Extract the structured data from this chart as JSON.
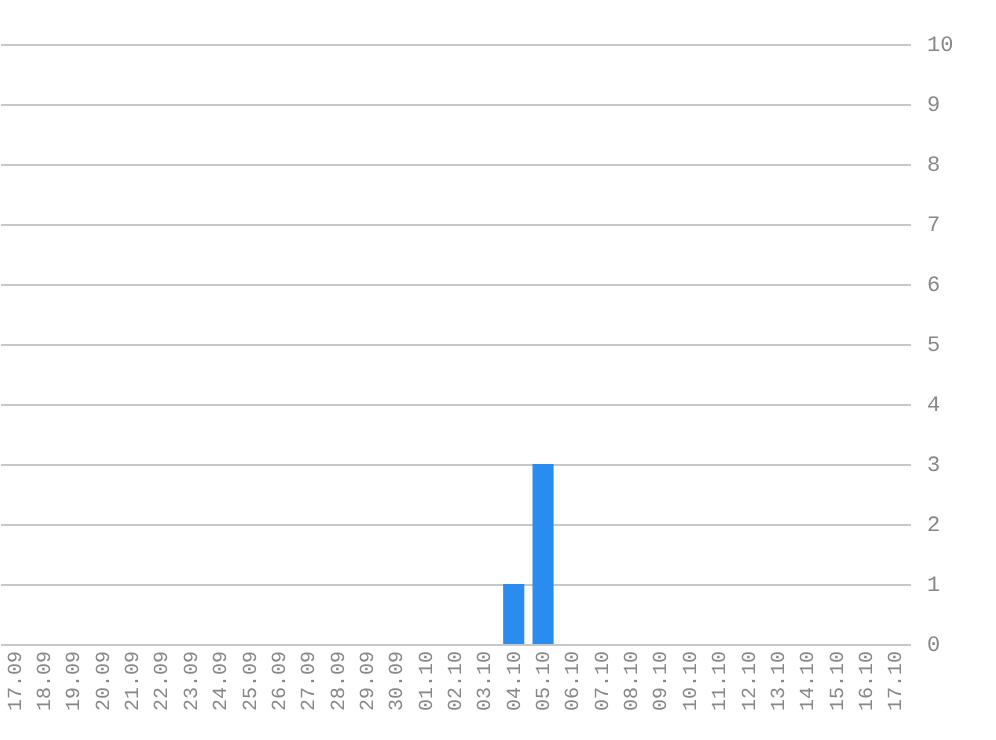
{
  "chart_data": {
    "type": "bar",
    "categories": [
      "17.09",
      "18.09",
      "19.09",
      "20.09",
      "21.09",
      "22.09",
      "23.09",
      "24.09",
      "25.09",
      "26.09",
      "27.09",
      "28.09",
      "29.09",
      "30.09",
      "01.10",
      "02.10",
      "03.10",
      "04.10",
      "05.10",
      "06.10",
      "07.10",
      "08.10",
      "09.10",
      "10.10",
      "11.10",
      "12.10",
      "13.10",
      "14.10",
      "15.10",
      "16.10",
      "17.10"
    ],
    "values": [
      0,
      0,
      0,
      0,
      0,
      0,
      0,
      0,
      0,
      0,
      0,
      0,
      0,
      0,
      0,
      0,
      0,
      1,
      3,
      0,
      0,
      0,
      0,
      0,
      0,
      0,
      0,
      0,
      0,
      0,
      0
    ],
    "color": "#2b8cf0",
    "ylim": [
      0,
      10
    ],
    "yticks": [
      0,
      1,
      2,
      3,
      4,
      5,
      6,
      7,
      8,
      9,
      10
    ],
    "grid": "y"
  }
}
